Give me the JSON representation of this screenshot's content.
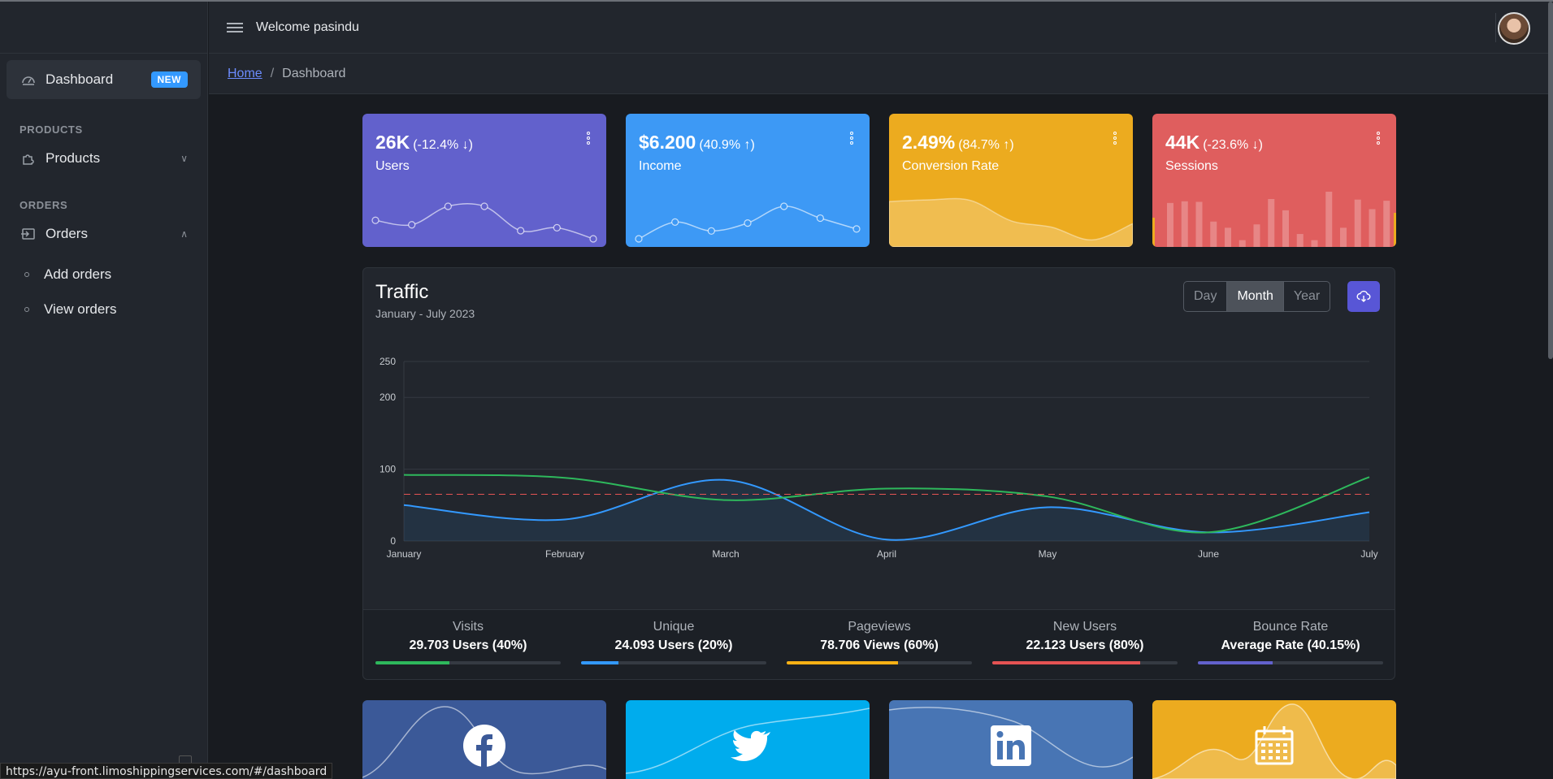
{
  "header": {
    "welcome": "Welcome pasindu"
  },
  "breadcrumb": {
    "home": "Home",
    "current": "Dashboard"
  },
  "sidebar": {
    "dashboard": {
      "label": "Dashboard",
      "badge": "NEW"
    },
    "sections": [
      {
        "title": "PRODUCTS",
        "item": "Products"
      },
      {
        "title": "ORDERS",
        "item": "Orders"
      }
    ],
    "orders_children": [
      "Add orders",
      "View orders"
    ]
  },
  "cards": [
    {
      "value": "26K",
      "change": "(-12.4% ↓)",
      "label": "Users",
      "color": "#6261cc",
      "trend": [
        65,
        59,
        84,
        84,
        51,
        55,
        40
      ]
    },
    {
      "value": "$6.200",
      "change": "(40.9% ↑)",
      "label": "Income",
      "color": "#3d99f5",
      "trend": [
        1,
        18,
        9,
        17,
        34,
        22,
        11
      ]
    },
    {
      "value": "2.49%",
      "change": "(84.7% ↑)",
      "label": "Conversion Rate",
      "color": "#ecab1f",
      "trend": [
        78,
        81,
        80,
        45,
        34,
        12,
        40
      ]
    },
    {
      "value": "44K",
      "change": "(-23.6% ↓)",
      "label": "Sessions",
      "color": "#df5e5e",
      "trend": [
        78,
        81,
        80,
        45,
        34,
        12,
        40,
        85,
        65,
        23,
        12,
        98,
        34,
        84,
        67,
        82
      ]
    }
  ],
  "traffic": {
    "title": "Traffic",
    "subtitle": "January - July 2023",
    "range_options": [
      "Day",
      "Month",
      "Year"
    ],
    "range_selected": "Month"
  },
  "chart_data": {
    "type": "line",
    "categories": [
      "January",
      "February",
      "March",
      "April",
      "May",
      "June",
      "July"
    ],
    "series": [
      {
        "values": [
          50,
          30,
          85,
          2,
          47,
          12,
          40
        ],
        "color": "#3399ff"
      },
      {
        "values": [
          92,
          88,
          57,
          73,
          62,
          12,
          89
        ],
        "color": "#2eb85c"
      },
      {
        "values": [
          65,
          65,
          65,
          65,
          65,
          65,
          65
        ],
        "color": "#e55353"
      }
    ],
    "yticks": [
      0,
      100,
      200,
      250
    ],
    "ylim": [
      0,
      250
    ]
  },
  "metrics": [
    {
      "title": "Visits",
      "value": "29.703 Users (40%)",
      "percent": 40,
      "color": "#2eb85c"
    },
    {
      "title": "Unique",
      "value": "24.093 Users (20%)",
      "percent": 20,
      "color": "#3399ff"
    },
    {
      "title": "Pageviews",
      "value": "78.706 Views (60%)",
      "percent": 60,
      "color": "#f9b115"
    },
    {
      "title": "New Users",
      "value": "22.123 Users (80%)",
      "percent": 80,
      "color": "#e55353"
    },
    {
      "title": "Bounce Rate",
      "value": "Average Rate (40.15%)",
      "percent": 40.15,
      "color": "#6261cc"
    }
  ],
  "social": [
    {
      "icon": "facebook-icon",
      "color": "#3b5998"
    },
    {
      "icon": "twitter-icon",
      "color": "#00aced"
    },
    {
      "icon": "linkedin-icon",
      "color": "#4875b4"
    },
    {
      "icon": "calendar-icon",
      "color": "#ecab1f"
    }
  ],
  "status_url": "https://ayu-front.limoshippingservices.com/#/dashboard"
}
